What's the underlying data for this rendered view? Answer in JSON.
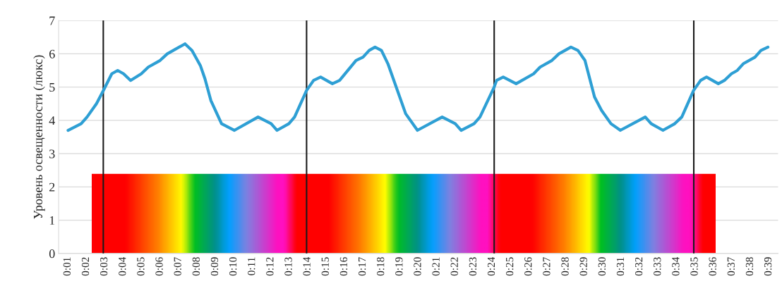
{
  "chart_data": {
    "type": "line",
    "ylabel": "Уровень освещенности (люкс)",
    "x": [
      1.01,
      1.72,
      2.04,
      2.55,
      2.93,
      3.38,
      3.7,
      4.02,
      4.4,
      4.98,
      5.36,
      6.0,
      6.39,
      7.35,
      7.73,
      8.18,
      8.43,
      8.75,
      9.33,
      10.03,
      11.31,
      12.02,
      12.34,
      12.98,
      13.29,
      13.94,
      14.32,
      14.7,
      15.34,
      15.73,
      16.62,
      17.0,
      17.33,
      17.65,
      18.0,
      18.35,
      19.31,
      19.95,
      21.29,
      22.0,
      22.32,
      23.02,
      23.34,
      24.11,
      24.24,
      24.6,
      25.3,
      26.25,
      26.6,
      27.24,
      27.62,
      28.27,
      28.65,
      29.03,
      29.55,
      29.93,
      30.44,
      30.95,
      32.3,
      32.62,
      33.26,
      33.9,
      34.28,
      34.92,
      35.3,
      35.62,
      36.26,
      36.59,
      36.97,
      37.29,
      37.61,
      38.25,
      38.57,
      38.95
    ],
    "series": [
      {
        "color": "#2e9fd4",
        "values": [
          3.7,
          3.9,
          4.1,
          4.5,
          4.9,
          5.4,
          5.5,
          5.4,
          5.2,
          5.4,
          5.6,
          5.8,
          6.0,
          6.3,
          6.1,
          5.65,
          5.25,
          4.6,
          3.9,
          3.7,
          4.1,
          3.9,
          3.7,
          3.9,
          4.1,
          4.9,
          5.2,
          5.3,
          5.1,
          5.2,
          5.8,
          5.9,
          6.1,
          6.2,
          6.1,
          5.7,
          4.2,
          3.7,
          4.1,
          3.9,
          3.7,
          3.9,
          4.1,
          5.0,
          5.2,
          5.3,
          5.1,
          5.4,
          5.6,
          5.8,
          6.0,
          6.2,
          6.1,
          5.8,
          4.7,
          4.3,
          3.9,
          3.7,
          4.1,
          3.9,
          3.7,
          3.9,
          4.1,
          4.9,
          5.2,
          5.3,
          5.1,
          5.2,
          5.4,
          5.5,
          5.7,
          5.9,
          6.1,
          6.2
        ]
      }
    ],
    "xlim": [
      0.5,
      39.5
    ],
    "xticks": [
      {
        "value": 1,
        "label": "0:01"
      },
      {
        "value": 2,
        "label": "0:02"
      },
      {
        "value": 3,
        "label": "0:03"
      },
      {
        "value": 4,
        "label": "0:04"
      },
      {
        "value": 5,
        "label": "0:05"
      },
      {
        "value": 6,
        "label": "0:06"
      },
      {
        "value": 7,
        "label": "0:07"
      },
      {
        "value": 8,
        "label": "0:08"
      },
      {
        "value": 9,
        "label": "0:09"
      },
      {
        "value": 10,
        "label": "0:10"
      },
      {
        "value": 11,
        "label": "0:11"
      },
      {
        "value": 12,
        "label": "0:12"
      },
      {
        "value": 13,
        "label": "0:13"
      },
      {
        "value": 14,
        "label": "0:14"
      },
      {
        "value": 15,
        "label": "0:15"
      },
      {
        "value": 16,
        "label": "0:16"
      },
      {
        "value": 17,
        "label": "0:17"
      },
      {
        "value": 18,
        "label": "0:18"
      },
      {
        "value": 19,
        "label": "0:19"
      },
      {
        "value": 20,
        "label": "0:20"
      },
      {
        "value": 21,
        "label": "0:21"
      },
      {
        "value": 22,
        "label": "0:22"
      },
      {
        "value": 23,
        "label": "0:23"
      },
      {
        "value": 24,
        "label": "0:24"
      },
      {
        "value": 25,
        "label": "0:25"
      },
      {
        "value": 26,
        "label": "0:26"
      },
      {
        "value": 27,
        "label": "0:27"
      },
      {
        "value": 28,
        "label": "0:28"
      },
      {
        "value": 29,
        "label": "0:29"
      },
      {
        "value": 30,
        "label": "0:30"
      },
      {
        "value": 31,
        "label": "0:31"
      },
      {
        "value": 32,
        "label": "0:32"
      },
      {
        "value": 33,
        "label": "0:33"
      },
      {
        "value": 34,
        "label": "0:34"
      },
      {
        "value": 35,
        "label": "0:35"
      },
      {
        "value": 36,
        "label": "0:36"
      },
      {
        "value": 37,
        "label": "0:37"
      },
      {
        "value": 38,
        "label": "0:38"
      },
      {
        "value": 39,
        "label": "0:39"
      }
    ],
    "ylim": [
      0,
      7
    ],
    "yticks": [
      0,
      1,
      2,
      3,
      4,
      5,
      6,
      7
    ],
    "grid": "y",
    "ref_lines": [
      {
        "axis": "x",
        "value": 2.92,
        "color": "#1a1a1a"
      },
      {
        "axis": "x",
        "value": 13.94,
        "color": "#1a1a1a"
      },
      {
        "axis": "x",
        "value": 24.11,
        "color": "#1a1a1a"
      },
      {
        "axis": "x",
        "value": 34.93,
        "color": "#1a1a1a"
      }
    ]
  }
}
